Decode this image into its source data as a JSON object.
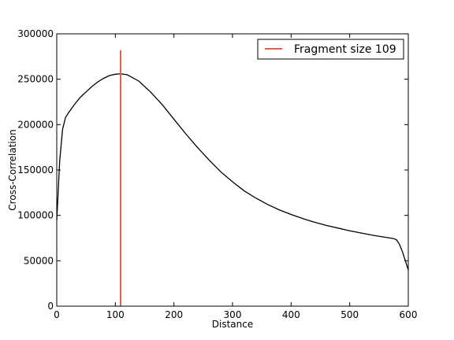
{
  "chart_data": {
    "type": "line",
    "title": "",
    "xlabel": "Distance",
    "ylabel": "Cross-Correlation",
    "xlim": [
      0,
      600
    ],
    "ylim": [
      0,
      300000
    ],
    "xticks": [
      0,
      100,
      200,
      300,
      400,
      500,
      600
    ],
    "yticks": [
      0,
      50000,
      100000,
      150000,
      200000,
      250000,
      300000
    ],
    "grid": false,
    "legend_position": "top-right",
    "series": [
      {
        "color": "#000000",
        "x": [
          0,
          2,
          5,
          10,
          15,
          20,
          30,
          40,
          50,
          60,
          70,
          80,
          90,
          100,
          109,
          120,
          140,
          160,
          180,
          200,
          220,
          240,
          260,
          280,
          300,
          320,
          340,
          360,
          380,
          400,
          420,
          440,
          460,
          480,
          500,
          520,
          540,
          560,
          575,
          580,
          585,
          590,
          595,
          600
        ],
        "y": [
          95000,
          120000,
          160000,
          195000,
          208000,
          213000,
          222000,
          230000,
          236000,
          242000,
          247000,
          251000,
          254000,
          255500,
          256000,
          255000,
          248000,
          236000,
          222000,
          206000,
          190000,
          175000,
          161000,
          148000,
          137000,
          127000,
          119000,
          112000,
          106000,
          101000,
          96500,
          92500,
          89000,
          86000,
          83000,
          80500,
          78000,
          76000,
          74500,
          73000,
          68000,
          60000,
          50000,
          40000
        ]
      },
      {
        "name": "Fragment size 109",
        "color": "#e0604c",
        "x": [
          109,
          109
        ],
        "y": [
          0,
          282000
        ]
      }
    ]
  }
}
